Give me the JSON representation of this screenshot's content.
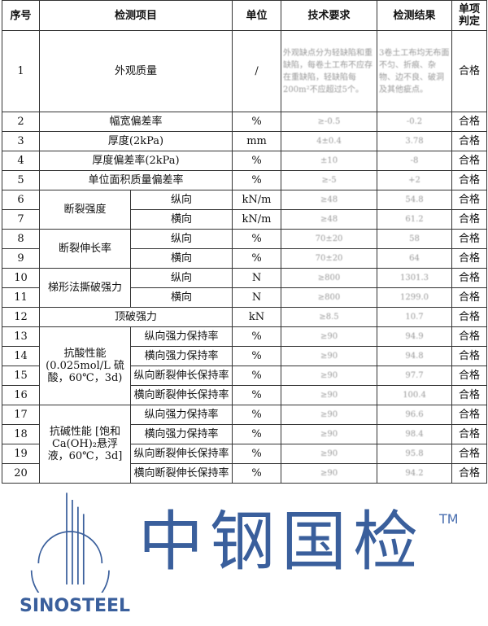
{
  "headers": {
    "no": "序号",
    "item": "检测项目",
    "unit": "单位",
    "req": "技术要求",
    "result": "检测结果",
    "judge": "单项判定"
  },
  "rows": [
    {
      "no": "1",
      "item": "外观质量",
      "unit": "/",
      "req": "外观缺点分为轻缺陷和重缺陷，每卷土工布不应存在重缺陷，轻缺陷每200m²不应超过5个。",
      "result": "3卷土工布均无布面不匀、折痕、杂物、边不良、破洞及其他疵点。",
      "judge": "合格"
    },
    {
      "no": "2",
      "item": "幅宽偏差率",
      "unit": "%",
      "req": "≥-0.5",
      "result": "-0.2",
      "judge": "合格"
    },
    {
      "no": "3",
      "item": "厚度(2kPa)",
      "unit": "mm",
      "req": "4±0.4",
      "result": "3.78",
      "judge": "合格"
    },
    {
      "no": "4",
      "item": "厚度偏差率(2kPa)",
      "unit": "%",
      "req": "±10",
      "result": "-8",
      "judge": "合格"
    },
    {
      "no": "5",
      "item": "单位面积质量偏差率",
      "unit": "%",
      "req": "≥-5",
      "result": "+2",
      "judge": "合格"
    },
    {
      "no": "6",
      "group": "断裂强度",
      "sub": "纵向",
      "unit": "kN/m",
      "req": "≥48",
      "result": "54.8",
      "judge": "合格"
    },
    {
      "no": "7",
      "sub": "横向",
      "unit": "kN/m",
      "req": "≥48",
      "result": "61.2",
      "judge": "合格"
    },
    {
      "no": "8",
      "group": "断裂伸长率",
      "sub": "纵向",
      "unit": "%",
      "req": "70±20",
      "result": "58",
      "judge": "合格"
    },
    {
      "no": "9",
      "sub": "横向",
      "unit": "%",
      "req": "70±20",
      "result": "64",
      "judge": "合格"
    },
    {
      "no": "10",
      "group": "梯形法撕破强力",
      "sub": "纵向",
      "unit": "N",
      "req": "≥800",
      "result": "1301.3",
      "judge": "合格"
    },
    {
      "no": "11",
      "sub": "横向",
      "unit": "N",
      "req": "≥800",
      "result": "1299.0",
      "judge": "合格"
    },
    {
      "no": "12",
      "item": "顶破强力",
      "unit": "kN",
      "req": "≥8.5",
      "result": "10.7",
      "judge": "合格"
    },
    {
      "no": "13",
      "group": "抗酸性能 (0.025mol/L 硫酸，60℃，3d)",
      "sub": "纵向强力保持率",
      "unit": "%",
      "req": "≥90",
      "result": "94.9",
      "judge": "合格"
    },
    {
      "no": "14",
      "sub": "横向强力保持率",
      "unit": "%",
      "req": "≥90",
      "result": "94.8",
      "judge": "合格"
    },
    {
      "no": "15",
      "sub": "纵向断裂伸长保持率",
      "unit": "%",
      "req": "≥90",
      "result": "97.7",
      "judge": "合格"
    },
    {
      "no": "16",
      "sub": "横向断裂伸长保持率",
      "unit": "%",
      "req": "≥90",
      "result": "100.4",
      "judge": "合格"
    },
    {
      "no": "17",
      "group": "抗碱性能 [饱和Ca(OH)₂悬浮液，60℃，3d]",
      "sub": "纵向强力保持率",
      "unit": "%",
      "req": "≥90",
      "result": "96.6",
      "judge": "合格"
    },
    {
      "no": "18",
      "sub": "横向强力保持率",
      "unit": "%",
      "req": "≥90",
      "result": "98.4",
      "judge": "合格"
    },
    {
      "no": "19",
      "sub": "纵向断裂伸长保持率",
      "unit": "%",
      "req": "≥90",
      "result": "95.8",
      "judge": "合格"
    },
    {
      "no": "20",
      "sub": "横向断裂伸长保持率",
      "unit": "%",
      "req": "≥90",
      "result": "94.2",
      "judge": "合格"
    }
  ],
  "watermark": {
    "text": "中钢国检",
    "logo": "SINOSTEEL",
    "tm": "TM",
    "color": "#3a5f9c"
  }
}
